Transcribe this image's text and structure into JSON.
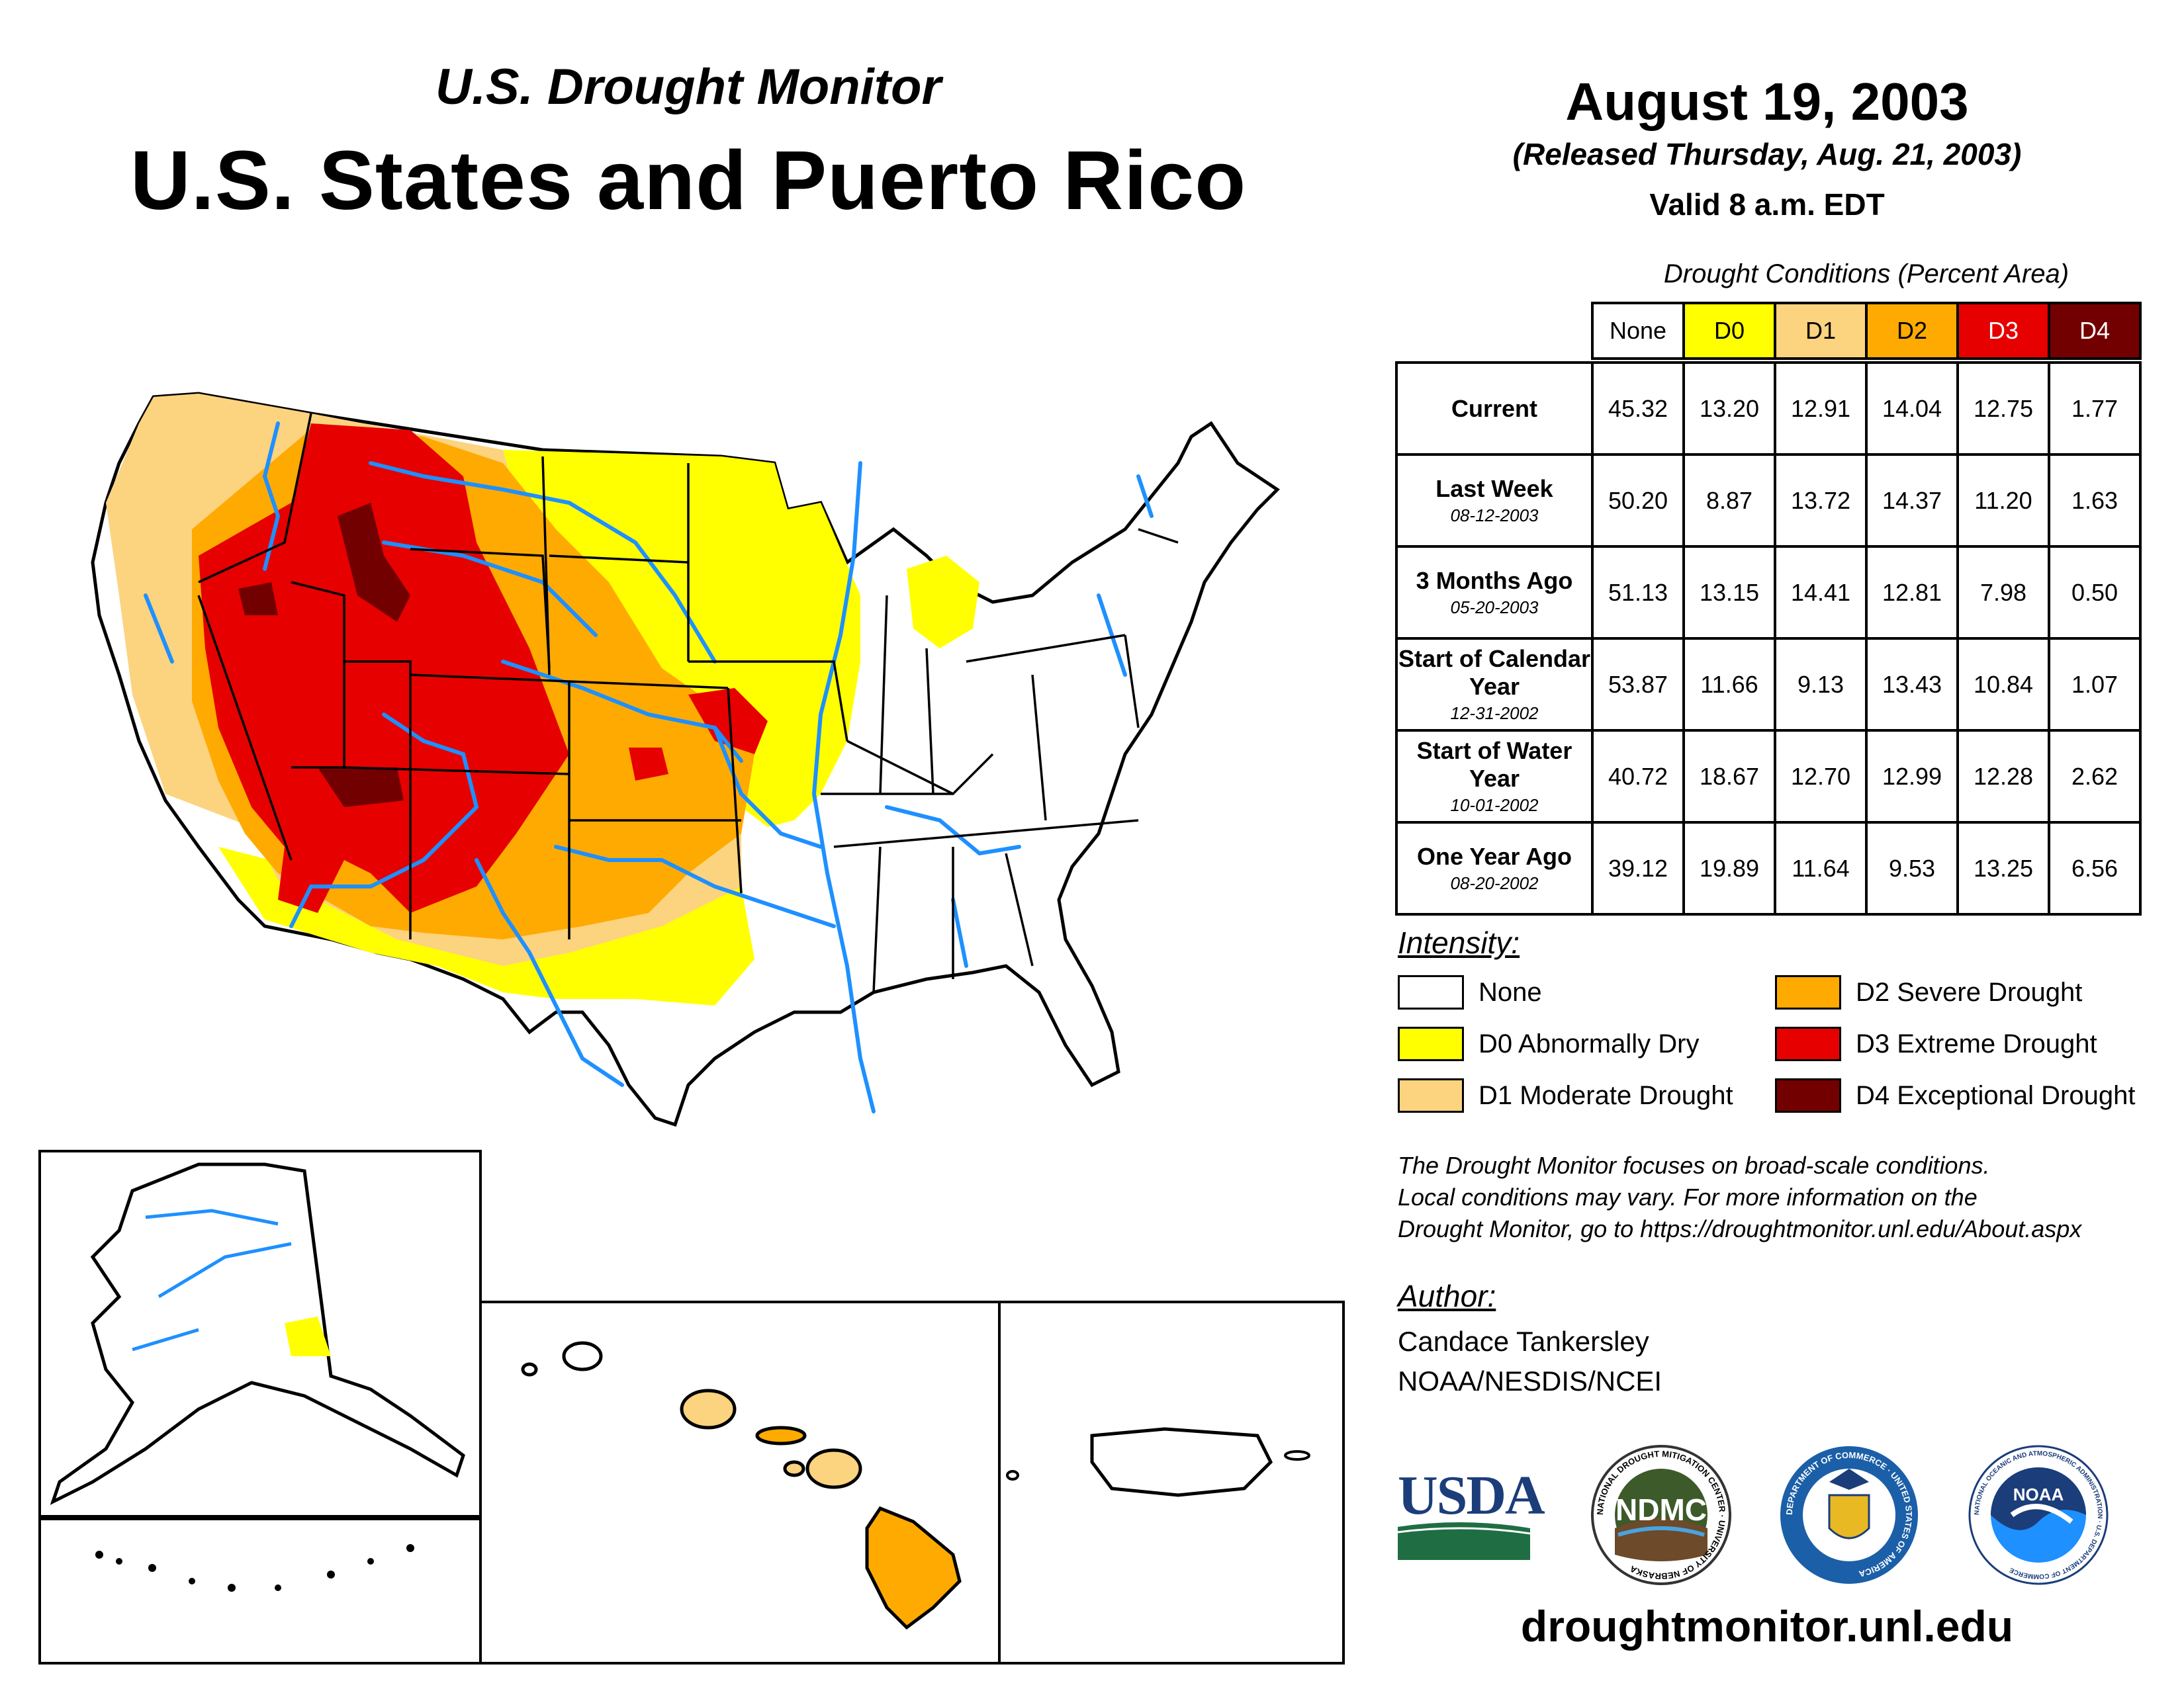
{
  "header": {
    "subtitle": "U.S. Drought Monitor",
    "title": "U.S. States and Puerto Rico",
    "date": "August 19, 2003",
    "released": "(Released Thursday, Aug. 21, 2003)",
    "valid": "Valid 8 a.m. EDT"
  },
  "table": {
    "caption": "Drought Conditions (Percent Area)",
    "columns": [
      "None",
      "D0",
      "D1",
      "D2",
      "D3",
      "D4"
    ],
    "rows": [
      {
        "label": "Current",
        "date": "",
        "values": [
          "45.32",
          "13.20",
          "12.91",
          "14.04",
          "12.75",
          "1.77"
        ]
      },
      {
        "label": "Last Week",
        "date": "08-12-2003",
        "values": [
          "50.20",
          "8.87",
          "13.72",
          "14.37",
          "11.20",
          "1.63"
        ]
      },
      {
        "label": "3 Months Ago",
        "date": "05-20-2003",
        "values": [
          "51.13",
          "13.15",
          "14.41",
          "12.81",
          "7.98",
          "0.50"
        ]
      },
      {
        "label": "Start of Calendar Year",
        "date": "12-31-2002",
        "values": [
          "53.87",
          "11.66",
          "9.13",
          "13.43",
          "10.84",
          "1.07"
        ]
      },
      {
        "label": "Start of Water Year",
        "date": "10-01-2002",
        "values": [
          "40.72",
          "18.67",
          "12.70",
          "12.99",
          "12.28",
          "2.62"
        ]
      },
      {
        "label": "One Year Ago",
        "date": "08-20-2002",
        "values": [
          "39.12",
          "19.89",
          "11.64",
          "9.53",
          "13.25",
          "6.56"
        ]
      }
    ]
  },
  "legend": {
    "title": "Intensity:",
    "items": [
      {
        "label": "None",
        "color": "#ffffff"
      },
      {
        "label": "D0 Abnormally Dry",
        "color": "#ffff00"
      },
      {
        "label": "D1 Moderate Drought",
        "color": "#fcd37f"
      },
      {
        "label": "D2 Severe Drought",
        "color": "#ffaa00"
      },
      {
        "label": "D3 Extreme Drought",
        "color": "#e60000"
      },
      {
        "label": "D4 Exceptional Drought",
        "color": "#730000"
      }
    ]
  },
  "note": {
    "line1": "The Drought Monitor focuses on broad-scale conditions.",
    "line2": "Local conditions may vary. For more information on the",
    "line3": "Drought Monitor, go to https://droughtmonitor.unl.edu/About.aspx"
  },
  "author": {
    "title": "Author:",
    "name": "Candace Tankersley",
    "org": "NOAA/NESDIS/NCEI"
  },
  "logos": {
    "usda": "USDA",
    "ndmc": "NDMC",
    "ndmc_ring": "NATIONAL DROUGHT MITIGATION CENTER · UNIVERSITY OF NEBRASKA",
    "commerce_ring": "DEPARTMENT OF COMMERCE · UNITED STATES OF AMERICA",
    "noaa": "NOAA",
    "noaa_ring": "NATIONAL OCEANIC AND ATMOSPHERIC ADMINISTRATION · U.S. DEPARTMENT OF COMMERCE"
  },
  "site": "droughtmonitor.unl.edu",
  "colors": {
    "none": "#ffffff",
    "d0": "#ffff00",
    "d1": "#fcd37f",
    "d2": "#ffaa00",
    "d3": "#e60000",
    "d4": "#730000",
    "rivers": "#1e90ff"
  }
}
